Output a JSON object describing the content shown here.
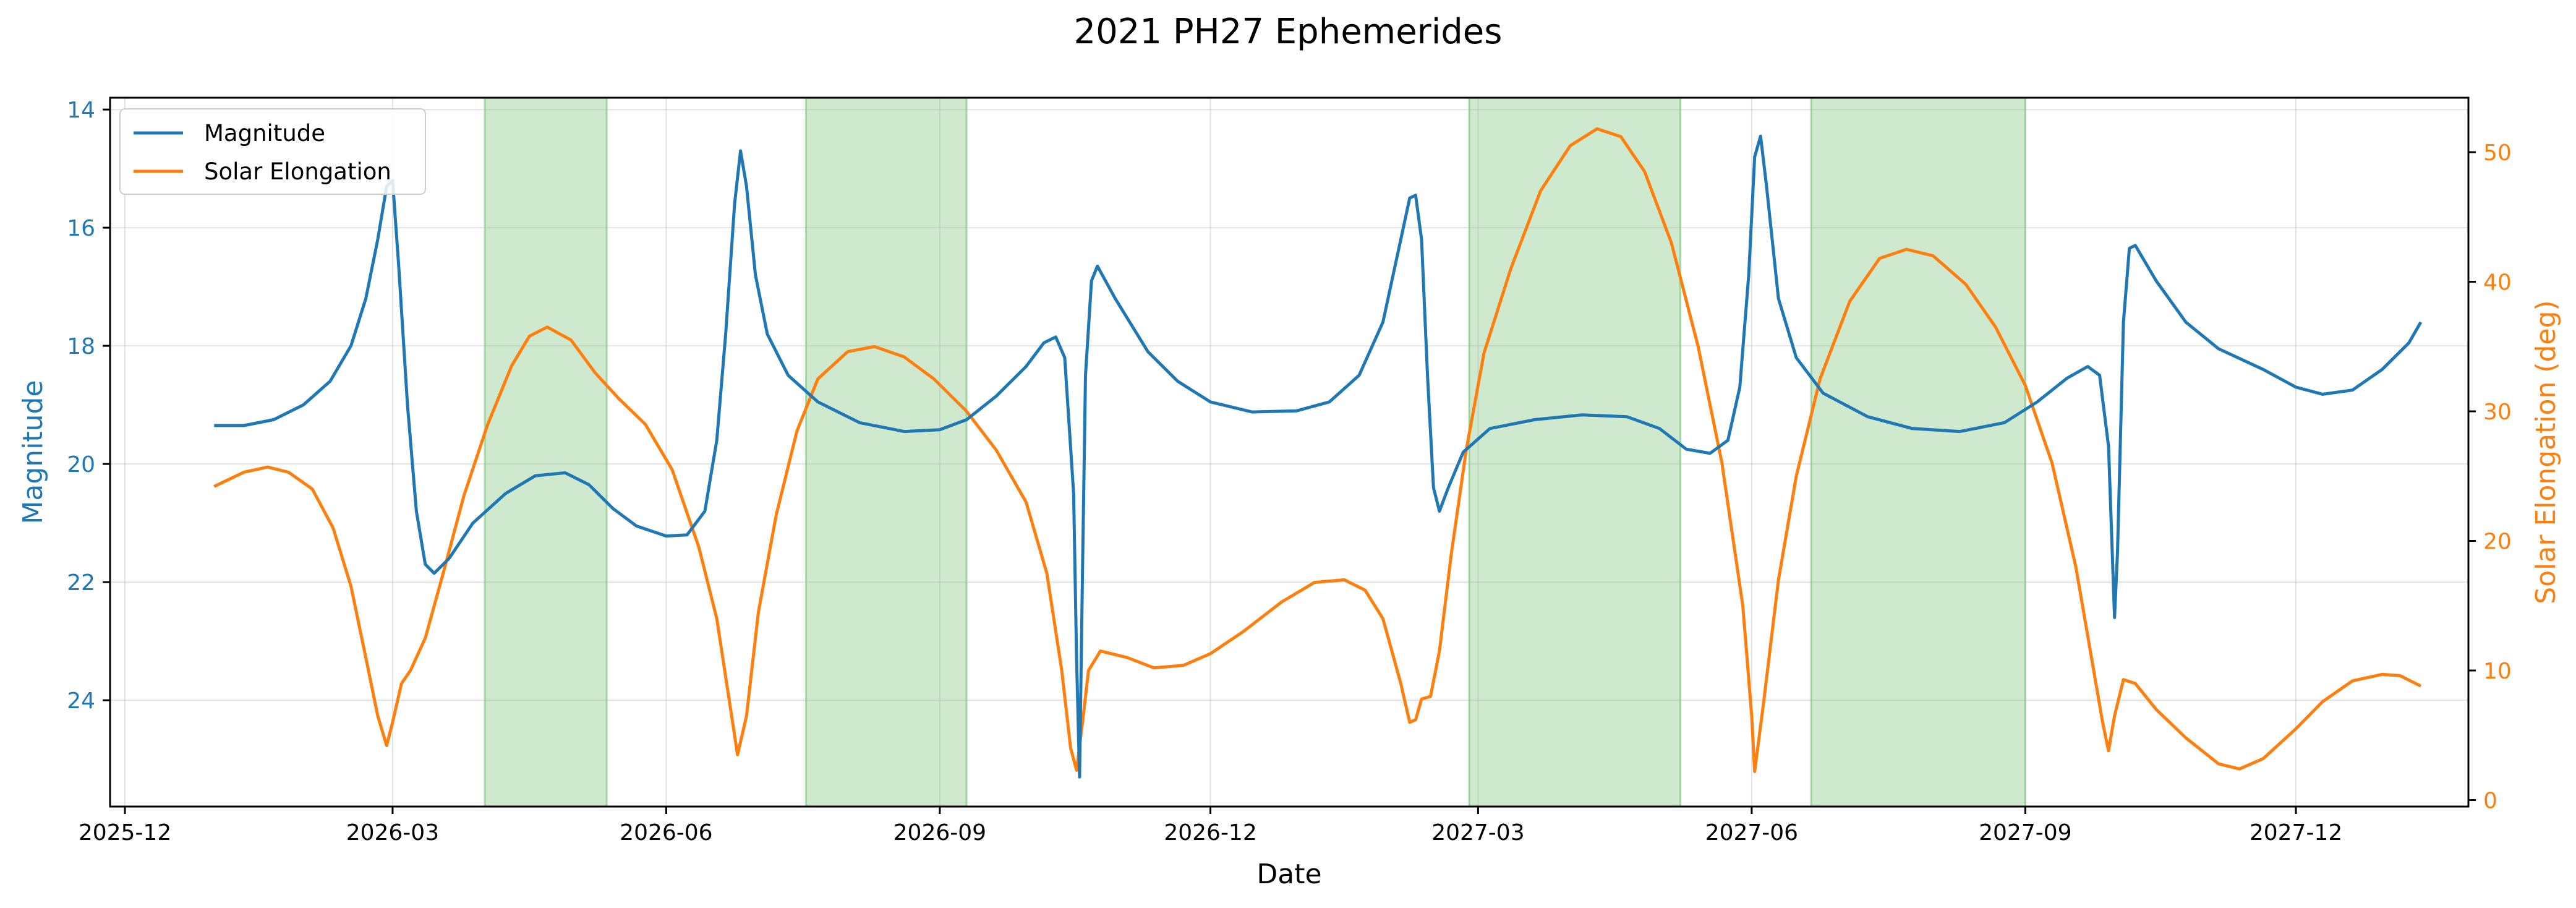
{
  "chart_data": {
    "type": "line",
    "title": "2021 PH27 Ephemerides",
    "xlabel": "Date",
    "ylabel_left": "Magnitude",
    "ylabel_right": "Solar Elongation (deg)",
    "x_range": [
      "2025-11-26",
      "2028-01-28"
    ],
    "y_left_range": [
      25.8,
      13.8
    ],
    "y_left_inverted": true,
    "y_right_range": [
      -0.5,
      54.2
    ],
    "grid": true,
    "legend_position": "top-left",
    "x_ticks": [
      {
        "date": "2025-12-01",
        "label": "2025-12"
      },
      {
        "date": "2026-03-01",
        "label": "2026-03"
      },
      {
        "date": "2026-06-01",
        "label": "2026-06"
      },
      {
        "date": "2026-09-01",
        "label": "2026-09"
      },
      {
        "date": "2026-12-01",
        "label": "2026-12"
      },
      {
        "date": "2027-03-01",
        "label": "2027-03"
      },
      {
        "date": "2027-06-01",
        "label": "2027-06"
      },
      {
        "date": "2027-09-01",
        "label": "2027-09"
      },
      {
        "date": "2027-12-01",
        "label": "2027-12"
      }
    ],
    "y_left_ticks": [
      14,
      16,
      18,
      20,
      22,
      24
    ],
    "y_right_ticks": [
      0,
      10,
      20,
      30,
      40,
      50
    ],
    "shaded_regions": [
      {
        "start": "2026-04-01",
        "end": "2026-05-12"
      },
      {
        "start": "2026-07-18",
        "end": "2026-09-10"
      },
      {
        "start": "2027-02-26",
        "end": "2027-05-08"
      },
      {
        "start": "2027-06-21",
        "end": "2027-09-01"
      }
    ],
    "colors": {
      "magnitude": "#1f77b4",
      "elongation": "#ff7f0e",
      "shade": "#2ca02c"
    },
    "series": [
      {
        "name": "Magnitude",
        "axis": "left",
        "points": [
          [
            "2025-12-31",
            19.35
          ],
          [
            "2026-01-10",
            19.35
          ],
          [
            "2026-01-20",
            19.25
          ],
          [
            "2026-01-30",
            19.0
          ],
          [
            "2026-02-08",
            18.6
          ],
          [
            "2026-02-15",
            18.0
          ],
          [
            "2026-02-20",
            17.2
          ],
          [
            "2026-02-24",
            16.2
          ],
          [
            "2026-02-27",
            15.3
          ],
          [
            "2026-03-01",
            15.2
          ],
          [
            "2026-03-03",
            16.6
          ],
          [
            "2026-03-06",
            19.0
          ],
          [
            "2026-03-09",
            20.8
          ],
          [
            "2026-03-12",
            21.7
          ],
          [
            "2026-03-15",
            21.85
          ],
          [
            "2026-03-20",
            21.6
          ],
          [
            "2026-03-28",
            21.0
          ],
          [
            "2026-04-08",
            20.5
          ],
          [
            "2026-04-18",
            20.2
          ],
          [
            "2026-04-28",
            20.15
          ],
          [
            "2026-05-06",
            20.35
          ],
          [
            "2026-05-14",
            20.75
          ],
          [
            "2026-05-22",
            21.05
          ],
          [
            "2026-06-01",
            21.22
          ],
          [
            "2026-06-08",
            21.2
          ],
          [
            "2026-06-14",
            20.8
          ],
          [
            "2026-06-18",
            19.6
          ],
          [
            "2026-06-21",
            17.8
          ],
          [
            "2026-06-24",
            15.6
          ],
          [
            "2026-06-26",
            14.7
          ],
          [
            "2026-06-28",
            15.3
          ],
          [
            "2026-07-01",
            16.8
          ],
          [
            "2026-07-05",
            17.8
          ],
          [
            "2026-07-12",
            18.5
          ],
          [
            "2026-07-22",
            18.95
          ],
          [
            "2026-08-05",
            19.3
          ],
          [
            "2026-08-20",
            19.45
          ],
          [
            "2026-09-01",
            19.42
          ],
          [
            "2026-09-10",
            19.25
          ],
          [
            "2026-09-20",
            18.85
          ],
          [
            "2026-09-30",
            18.35
          ],
          [
            "2026-10-06",
            17.95
          ],
          [
            "2026-10-10",
            17.85
          ],
          [
            "2026-10-13",
            18.2
          ],
          [
            "2026-10-16",
            20.5
          ],
          [
            "2026-10-17",
            23.3
          ],
          [
            "2026-10-18",
            25.3
          ],
          [
            "2026-10-19",
            21.8
          ],
          [
            "2026-10-20",
            18.5
          ],
          [
            "2026-10-22",
            16.9
          ],
          [
            "2026-10-24",
            16.65
          ],
          [
            "2026-10-30",
            17.2
          ],
          [
            "2026-11-10",
            18.1
          ],
          [
            "2026-11-20",
            18.6
          ],
          [
            "2026-12-01",
            18.95
          ],
          [
            "2026-12-15",
            19.12
          ],
          [
            "2026-12-30",
            19.1
          ],
          [
            "2027-01-10",
            18.95
          ],
          [
            "2027-01-20",
            18.5
          ],
          [
            "2027-01-28",
            17.6
          ],
          [
            "2027-02-03",
            16.2
          ],
          [
            "2027-02-06",
            15.5
          ],
          [
            "2027-02-08",
            15.45
          ],
          [
            "2027-02-10",
            16.2
          ],
          [
            "2027-02-12",
            18.5
          ],
          [
            "2027-02-14",
            20.4
          ],
          [
            "2027-02-16",
            20.8
          ],
          [
            "2027-02-19",
            20.4
          ],
          [
            "2027-02-24",
            19.8
          ],
          [
            "2027-03-05",
            19.4
          ],
          [
            "2027-03-20",
            19.25
          ],
          [
            "2027-04-05",
            19.17
          ],
          [
            "2027-04-20",
            19.2
          ],
          [
            "2027-05-01",
            19.4
          ],
          [
            "2027-05-10",
            19.75
          ],
          [
            "2027-05-18",
            19.82
          ],
          [
            "2027-05-24",
            19.6
          ],
          [
            "2027-05-28",
            18.7
          ],
          [
            "2027-05-31",
            16.8
          ],
          [
            "2027-06-02",
            14.8
          ],
          [
            "2027-06-04",
            14.45
          ],
          [
            "2027-06-06",
            15.3
          ],
          [
            "2027-06-10",
            17.2
          ],
          [
            "2027-06-16",
            18.2
          ],
          [
            "2027-06-25",
            18.8
          ],
          [
            "2027-07-10",
            19.2
          ],
          [
            "2027-07-25",
            19.4
          ],
          [
            "2027-08-10",
            19.45
          ],
          [
            "2027-08-25",
            19.3
          ],
          [
            "2027-09-05",
            18.95
          ],
          [
            "2027-09-15",
            18.55
          ],
          [
            "2027-09-22",
            18.35
          ],
          [
            "2027-09-26",
            18.5
          ],
          [
            "2027-09-29",
            19.7
          ],
          [
            "2027-10-01",
            22.6
          ],
          [
            "2027-10-02",
            21.5
          ],
          [
            "2027-10-04",
            17.6
          ],
          [
            "2027-10-06",
            16.35
          ],
          [
            "2027-10-08",
            16.3
          ],
          [
            "2027-10-15",
            16.9
          ],
          [
            "2027-10-25",
            17.6
          ],
          [
            "2027-11-05",
            18.05
          ],
          [
            "2027-11-20",
            18.4
          ],
          [
            "2027-12-01",
            18.7
          ],
          [
            "2027-12-10",
            18.82
          ],
          [
            "2027-12-20",
            18.75
          ],
          [
            "2027-12-30",
            18.4
          ],
          [
            "2028-01-08",
            17.95
          ],
          [
            "2028-01-12",
            17.6
          ]
        ]
      },
      {
        "name": "Solar Elongation",
        "axis": "right",
        "points": [
          [
            "2025-12-31",
            24.2
          ],
          [
            "2026-01-10",
            25.3
          ],
          [
            "2026-01-18",
            25.7
          ],
          [
            "2026-01-25",
            25.3
          ],
          [
            "2026-02-02",
            24.0
          ],
          [
            "2026-02-09",
            21.0
          ],
          [
            "2026-02-15",
            16.5
          ],
          [
            "2026-02-20",
            11.0
          ],
          [
            "2026-02-24",
            6.5
          ],
          [
            "2026-02-27",
            4.2
          ],
          [
            "2026-03-01",
            6.0
          ],
          [
            "2026-03-04",
            9.0
          ],
          [
            "2026-03-07",
            10.0
          ],
          [
            "2026-03-12",
            12.5
          ],
          [
            "2026-03-18",
            17.5
          ],
          [
            "2026-03-25",
            23.5
          ],
          [
            "2026-04-02",
            29.0
          ],
          [
            "2026-04-10",
            33.5
          ],
          [
            "2026-04-16",
            35.8
          ],
          [
            "2026-04-22",
            36.5
          ],
          [
            "2026-04-30",
            35.5
          ],
          [
            "2026-05-08",
            33.0
          ],
          [
            "2026-05-16",
            31.0
          ],
          [
            "2026-05-25",
            29.0
          ],
          [
            "2026-06-03",
            25.5
          ],
          [
            "2026-06-12",
            19.5
          ],
          [
            "2026-06-18",
            14.0
          ],
          [
            "2026-06-22",
            8.0
          ],
          [
            "2026-06-25",
            3.5
          ],
          [
            "2026-06-28",
            6.5
          ],
          [
            "2026-07-02",
            14.5
          ],
          [
            "2026-07-08",
            22.0
          ],
          [
            "2026-07-15",
            28.5
          ],
          [
            "2026-07-22",
            32.5
          ],
          [
            "2026-08-01",
            34.6
          ],
          [
            "2026-08-10",
            35.0
          ],
          [
            "2026-08-20",
            34.2
          ],
          [
            "2026-08-30",
            32.5
          ],
          [
            "2026-09-10",
            30.0
          ],
          [
            "2026-09-20",
            27.0
          ],
          [
            "2026-09-30",
            23.0
          ],
          [
            "2026-10-07",
            17.5
          ],
          [
            "2026-10-12",
            10.0
          ],
          [
            "2026-10-15",
            4.0
          ],
          [
            "2026-10-17",
            2.3
          ],
          [
            "2026-10-19",
            6.0
          ],
          [
            "2026-10-21",
            10.0
          ],
          [
            "2026-10-25",
            11.5
          ],
          [
            "2026-11-03",
            11.0
          ],
          [
            "2026-11-12",
            10.2
          ],
          [
            "2026-11-22",
            10.4
          ],
          [
            "2026-12-01",
            11.3
          ],
          [
            "2026-12-12",
            13.0
          ],
          [
            "2026-12-25",
            15.3
          ],
          [
            "2027-01-05",
            16.8
          ],
          [
            "2027-01-15",
            17.0
          ],
          [
            "2027-01-22",
            16.2
          ],
          [
            "2027-01-28",
            14.0
          ],
          [
            "2027-02-03",
            9.0
          ],
          [
            "2027-02-06",
            6.0
          ],
          [
            "2027-02-08",
            6.2
          ],
          [
            "2027-02-10",
            7.8
          ],
          [
            "2027-02-13",
            8.0
          ],
          [
            "2027-02-16",
            11.5
          ],
          [
            "2027-02-20",
            19.0
          ],
          [
            "2027-02-25",
            27.0
          ],
          [
            "2027-03-03",
            34.5
          ],
          [
            "2027-03-12",
            41.0
          ],
          [
            "2027-03-22",
            47.0
          ],
          [
            "2027-04-01",
            50.5
          ],
          [
            "2027-04-10",
            51.8
          ],
          [
            "2027-04-18",
            51.2
          ],
          [
            "2027-04-26",
            48.5
          ],
          [
            "2027-05-05",
            43.0
          ],
          [
            "2027-05-14",
            35.0
          ],
          [
            "2027-05-22",
            26.0
          ],
          [
            "2027-05-29",
            15.0
          ],
          [
            "2027-06-01",
            6.5
          ],
          [
            "2027-06-02",
            2.2
          ],
          [
            "2027-06-05",
            7.5
          ],
          [
            "2027-06-10",
            17.0
          ],
          [
            "2027-06-16",
            25.0
          ],
          [
            "2027-06-24",
            32.5
          ],
          [
            "2027-07-04",
            38.5
          ],
          [
            "2027-07-14",
            41.8
          ],
          [
            "2027-07-23",
            42.5
          ],
          [
            "2027-08-01",
            42.0
          ],
          [
            "2027-08-12",
            39.8
          ],
          [
            "2027-08-22",
            36.5
          ],
          [
            "2027-09-01",
            32.0
          ],
          [
            "2027-09-10",
            26.0
          ],
          [
            "2027-09-18",
            18.0
          ],
          [
            "2027-09-24",
            10.0
          ],
          [
            "2027-09-27",
            6.0
          ],
          [
            "2027-09-29",
            3.8
          ],
          [
            "2027-10-01",
            6.5
          ],
          [
            "2027-10-04",
            9.3
          ],
          [
            "2027-10-08",
            9.0
          ],
          [
            "2027-10-15",
            7.0
          ],
          [
            "2027-10-25",
            4.8
          ],
          [
            "2027-11-05",
            2.8
          ],
          [
            "2027-11-12",
            2.4
          ],
          [
            "2027-11-20",
            3.2
          ],
          [
            "2027-12-01",
            5.5
          ],
          [
            "2027-12-10",
            7.6
          ],
          [
            "2027-12-20",
            9.2
          ],
          [
            "2027-12-30",
            9.7
          ],
          [
            "2028-01-05",
            9.6
          ],
          [
            "2028-01-12",
            8.8
          ]
        ]
      }
    ]
  }
}
